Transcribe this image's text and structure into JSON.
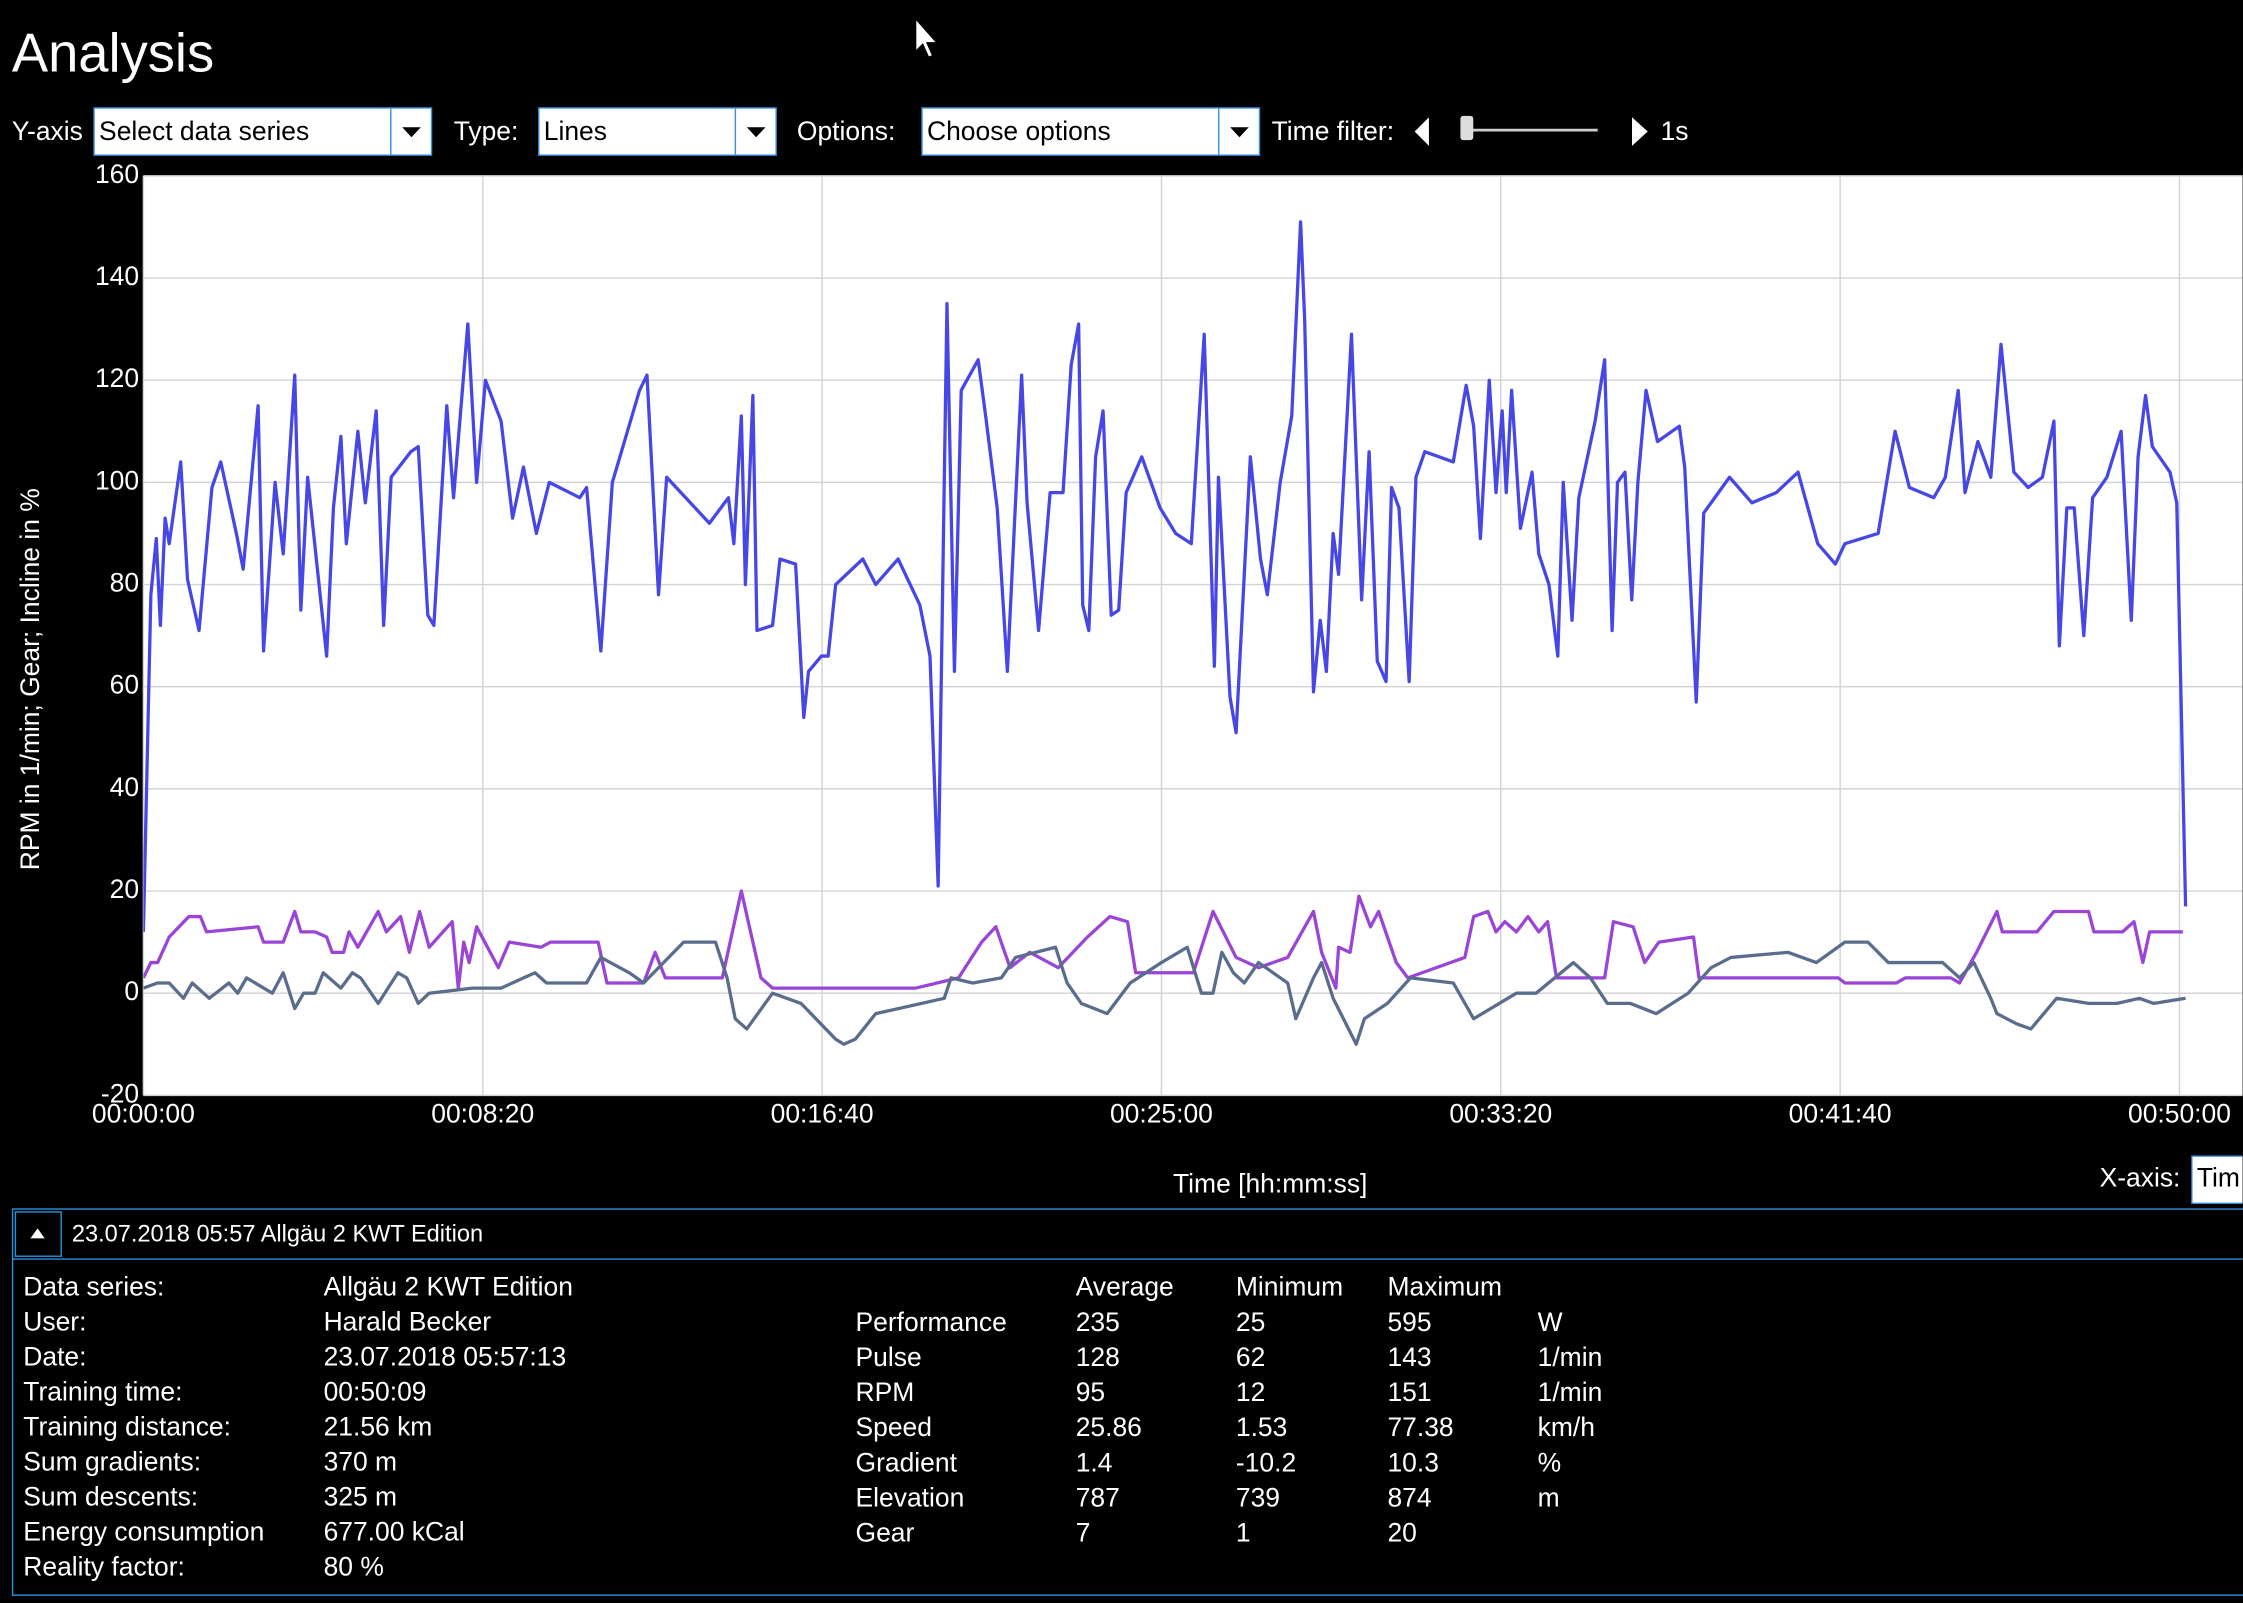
{
  "header": {
    "title": "Analysis"
  },
  "toolbar": {
    "y_axis_label": "Y-axis",
    "y_axis_value": "Select data series",
    "type_label": "Type:",
    "type_value": "Lines",
    "options_label": "Options:",
    "options_value": "Choose options",
    "time_filter_label": "Time filter:",
    "time_filter_value": "1s",
    "x_axis_label": "X-axis:",
    "x_axis_value": "Tim"
  },
  "chart_data": {
    "type": "line",
    "xlabel": "Time [hh:mm:ss]",
    "ylabel": "RPM in 1/min; Gear; Incline in %",
    "xlim": [
      0,
      3093
    ],
    "ylim": [
      -20,
      160
    ],
    "xticks": [
      {
        "value": 0,
        "label": "00:00:00"
      },
      {
        "value": 500,
        "label": "00:08:20"
      },
      {
        "value": 1000,
        "label": "00:16:40"
      },
      {
        "value": 1500,
        "label": "00:25:00"
      },
      {
        "value": 2000,
        "label": "00:33:20"
      },
      {
        "value": 2500,
        "label": "00:41:40"
      },
      {
        "value": 3000,
        "label": "00:50:00"
      }
    ],
    "yticks": [
      -20,
      0,
      20,
      40,
      60,
      80,
      100,
      120,
      140,
      160
    ],
    "grid": true,
    "series": [
      {
        "color": "#4747e6",
        "x": [
          0,
          11,
          19,
          25,
          32,
          38,
          55,
          65,
          82,
          101,
          114,
          137,
          147,
          169,
          177,
          194,
          206,
          223,
          232,
          242,
          270,
          280,
          291,
          299,
          316,
          327,
          343,
          354,
          365,
          394,
          405,
          419,
          428,
          447,
          457,
          478,
          491,
          504,
          527,
          544,
          560,
          579,
          598,
          643,
          653,
          674,
          691,
          731,
          742,
          759,
          771,
          834,
          862,
          870,
          881,
          887,
          898,
          904,
          927,
          938,
          961,
          973,
          980,
          999,
          1009,
          1020,
          1060,
          1079,
          1112,
          1144,
          1159,
          1171,
          1184,
          1195,
          1205,
          1230,
          1241,
          1258,
          1273,
          1294,
          1302,
          1319,
          1336,
          1355,
          1367,
          1378,
          1384,
          1393,
          1403,
          1414,
          1426,
          1437,
          1448,
          1471,
          1498,
          1521,
          1544,
          1563,
          1578,
          1584,
          1601,
          1610,
          1631,
          1646,
          1656,
          1675,
          1692,
          1705,
          1711,
          1724,
          1734,
          1743,
          1753,
          1761,
          1780,
          1795,
          1806,
          1818,
          1831,
          1839,
          1850,
          1865,
          1875,
          1888,
          1930,
          1949,
          1960,
          1970,
          1983,
          1993,
          2002,
          2008,
          2016,
          2029,
          2046,
          2056,
          2071,
          2084,
          2092,
          2105,
          2115,
          2139,
          2153,
          2164,
          2172,
          2183,
          2193,
          2202,
          2214,
          2231,
          2263,
          2271,
          2288,
          2299,
          2337,
          2370,
          2406,
          2438,
          2467,
          2493,
          2507,
          2556,
          2581,
          2602,
          2638,
          2655,
          2674,
          2684,
          2703,
          2722,
          2737,
          2756,
          2777,
          2798,
          2815,
          2823,
          2834,
          2845,
          2859,
          2872,
          2893,
          2914,
          2929,
          2939,
          2950,
          2960,
          2986,
          2996,
          3009
        ],
        "values": [
          12,
          78,
          89,
          72,
          93,
          88,
          104,
          81,
          71,
          99,
          104,
          90,
          83,
          115,
          67,
          100,
          86,
          121,
          75,
          101,
          66,
          95,
          109,
          88,
          110,
          96,
          114,
          72,
          101,
          106,
          107,
          74,
          72,
          115,
          97,
          131,
          100,
          120,
          112,
          93,
          103,
          90,
          100,
          97,
          99,
          67,
          100,
          118,
          121,
          78,
          101,
          92,
          97,
          88,
          113,
          80,
          117,
          71,
          72,
          85,
          84,
          54,
          63,
          66,
          66,
          80,
          85,
          80,
          85,
          76,
          66,
          21,
          135,
          63,
          118,
          124,
          113,
          95,
          63,
          121,
          96,
          71,
          98,
          98,
          123,
          131,
          76,
          71,
          105,
          114,
          74,
          75,
          98,
          105,
          95,
          90,
          88,
          129,
          64,
          101,
          58,
          51,
          105,
          85,
          78,
          100,
          113,
          151,
          132,
          59,
          73,
          63,
          90,
          82,
          129,
          77,
          106,
          65,
          61,
          99,
          95,
          61,
          101,
          106,
          104,
          119,
          111,
          89,
          120,
          98,
          114,
          98,
          118,
          91,
          102,
          86,
          80,
          66,
          100,
          73,
          97,
          112,
          124,
          71,
          100,
          102,
          77,
          100,
          118,
          108,
          111,
          103,
          57,
          94,
          101,
          96,
          98,
          102,
          88,
          84,
          88,
          90,
          110,
          99,
          97,
          101,
          118,
          98,
          108,
          101,
          127,
          102,
          99,
          101,
          112,
          68,
          95,
          95,
          70,
          97,
          101,
          110,
          73,
          105,
          117,
          107,
          102,
          96,
          17
        ]
      },
      {
        "color": "#9a45d6",
        "x": [
          0,
          11,
          21,
          38,
          67,
          84,
          93,
          169,
          177,
          206,
          223,
          232,
          253,
          270,
          278,
          295,
          303,
          316,
          346,
          358,
          379,
          392,
          407,
          421,
          455,
          464,
          472,
          480,
          491,
          523,
          539,
          586,
          600,
          670,
          683,
          737,
          754,
          769,
          853,
          881,
          910,
          927,
          1138,
          1201,
          1235,
          1256,
          1277,
          1306,
          1348,
          1391,
          1424,
          1450,
          1462,
          1547,
          1576,
          1610,
          1643,
          1686,
          1724,
          1736,
          1757,
          1761,
          1778,
          1791,
          1808,
          1820,
          1846,
          1863,
          1947,
          1960,
          1981,
          1993,
          2006,
          2023,
          2040,
          2056,
          2069,
          2082,
          2153,
          2166,
          2195,
          2212,
          2233,
          2284,
          2292,
          2497,
          2507,
          2583,
          2596,
          2663,
          2676,
          2701,
          2731,
          2739,
          2790,
          2815,
          2866,
          2874,
          2916,
          2933,
          2946,
          2956,
          3005
        ],
        "values": [
          3,
          6,
          6,
          11,
          15,
          15,
          12,
          13,
          10,
          10,
          16,
          12,
          12,
          11,
          8,
          8,
          12,
          9,
          16,
          12,
          15,
          8,
          16,
          9,
          14,
          1,
          10,
          6,
          13,
          5,
          10,
          9,
          10,
          10,
          2,
          2,
          8,
          3,
          3,
          20,
          3,
          1,
          1,
          3,
          10,
          13,
          5,
          8,
          5,
          11,
          15,
          14,
          4,
          4,
          16,
          7,
          5,
          7,
          16,
          8,
          1,
          9,
          8,
          19,
          13,
          16,
          6,
          3,
          7,
          15,
          16,
          12,
          14,
          12,
          15,
          12,
          14,
          3,
          3,
          14,
          13,
          6,
          10,
          11,
          3,
          3,
          2,
          2,
          3,
          3,
          2,
          8,
          16,
          12,
          12,
          16,
          16,
          12,
          12,
          14,
          6,
          12,
          12
        ]
      },
      {
        "color": "#5a6d8c",
        "x": [
          0,
          21,
          38,
          59,
          72,
          97,
          126,
          139,
          152,
          190,
          206,
          223,
          236,
          253,
          265,
          291,
          308,
          320,
          346,
          375,
          388,
          405,
          421,
          485,
          527,
          577,
          594,
          653,
          674,
          716,
          737,
          796,
          843,
          860,
          872,
          889,
          927,
          969,
          1020,
          1032,
          1049,
          1079,
          1180,
          1190,
          1222,
          1264,
          1285,
          1344,
          1361,
          1382,
          1420,
          1454,
          1500,
          1538,
          1559,
          1576,
          1589,
          1606,
          1622,
          1643,
          1686,
          1698,
          1724,
          1736,
          1753,
          1787,
          1799,
          1833,
          1867,
          1930,
          1960,
          2023,
          2052,
          2107,
          2132,
          2157,
          2191,
          2229,
          2276,
          2310,
          2339,
          2423,
          2465,
          2507,
          2541,
          2571,
          2651,
          2676,
          2697,
          2722,
          2731,
          2760,
          2781,
          2819,
          2866,
          2908,
          2941,
          2962,
          3009
        ],
        "values": [
          1,
          2,
          2,
          -1,
          2,
          -1,
          2,
          0,
          3,
          0,
          4,
          -3,
          0,
          0,
          4,
          1,
          4,
          3,
          -2,
          4,
          3,
          -2,
          0,
          1,
          1,
          4,
          2,
          2,
          7,
          4,
          2,
          10,
          10,
          3,
          -5,
          -7,
          0,
          -2,
          -9,
          -10,
          -9,
          -4,
          -1,
          3,
          2,
          3,
          7,
          9,
          2,
          -2,
          -4,
          2,
          6,
          9,
          0,
          0,
          8,
          4,
          2,
          6,
          2,
          -5,
          3,
          6,
          -1,
          -10,
          -5,
          -2,
          3,
          2,
          -5,
          0,
          0,
          6,
          3,
          -2,
          -2,
          -4,
          0,
          5,
          7,
          8,
          6,
          10,
          10,
          6,
          6,
          3,
          6,
          -1,
          -4,
          -6,
          -7,
          -1,
          -2,
          -2,
          -1,
          -2,
          -1
        ]
      }
    ]
  },
  "panel": {
    "title": "23.07.2018 05:57 Allgäu 2 KWT Edition",
    "info": [
      [
        "Data series:",
        "Allgäu 2 KWT Edition"
      ],
      [
        "User:",
        "Harald Becker"
      ],
      [
        "Date:",
        "23.07.2018 05:57:13"
      ],
      [
        "Training time:",
        "00:50:09"
      ],
      [
        "Training distance:",
        "21.56 km"
      ],
      [
        "Sum gradients:",
        "370 m"
      ],
      [
        "Sum descents:",
        "325 m"
      ],
      [
        "Energy consumption",
        "677.00 kCal"
      ],
      [
        "Reality factor:",
        "80 %"
      ]
    ],
    "stats_header": [
      "Average",
      "Minimum",
      "Maximum"
    ],
    "stats": [
      [
        "Performance",
        235,
        25,
        595,
        "W"
      ],
      [
        "Pulse",
        128,
        62,
        143,
        "1/min"
      ],
      [
        "RPM",
        95,
        12,
        151,
        "1/min"
      ],
      [
        "Speed",
        25.86,
        1.53,
        77.38,
        "km/h"
      ],
      [
        "Gradient",
        1.4,
        -10.2,
        10.3,
        "%"
      ],
      [
        "Elevation",
        787,
        739,
        874,
        "m"
      ],
      [
        "Gear",
        7,
        1,
        20
      ]
    ]
  }
}
